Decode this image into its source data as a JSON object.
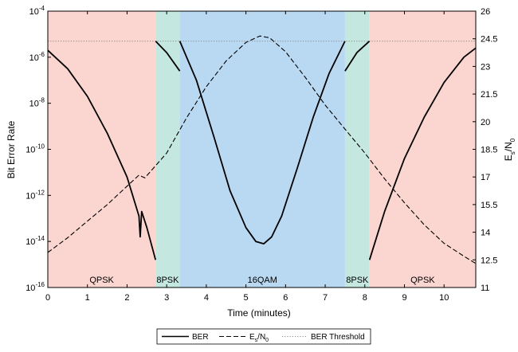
{
  "chart_data": {
    "type": "line",
    "xlabel": "Time (minutes)",
    "ylabel_left": "Bit Error Rate",
    "ylabel_right": {
      "main": "E",
      "sub1": "s",
      "slash": "/N",
      "sub2": "0"
    },
    "xlim": [
      0,
      10.8
    ],
    "x_ticks": [
      0,
      1,
      2,
      3,
      4,
      5,
      6,
      7,
      8,
      9,
      10
    ],
    "x_tick_labels": [
      "0",
      "1",
      "2",
      "3",
      "4",
      "5",
      "6",
      "7",
      "8",
      "9",
      "10"
    ],
    "y_left_scale": "log",
    "y_left_exponent_range": [
      -16,
      -4
    ],
    "y_left_tick_exponents": [
      -16,
      -14,
      -12,
      -10,
      -8,
      -6,
      -4
    ],
    "y_left_tick_base": "10",
    "y_left_tick_exps": [
      "-16",
      "-14",
      "-12",
      "-10",
      "-8",
      "-6",
      "-4"
    ],
    "y_right_lim": [
      11,
      26
    ],
    "y_right_ticks": [
      11,
      12.5,
      14,
      15.5,
      17,
      18.5,
      20,
      21.5,
      23,
      24.5,
      26
    ],
    "y_right_tick_labels": [
      "11",
      "12.5",
      "14",
      "15.5",
      "17",
      "18.5",
      "20",
      "21.5",
      "23",
      "24.5",
      "26"
    ],
    "regions": [
      {
        "label": "QPSK",
        "x0": 0,
        "x1": 2.72,
        "color": "#fbd5d0"
      },
      {
        "label": "8PSK",
        "x0": 2.72,
        "x1": 3.33,
        "color": "#c4e8df"
      },
      {
        "label": "16QAM",
        "x0": 3.33,
        "x1": 7.5,
        "color": "#b9d8f2"
      },
      {
        "label": "8PSK",
        "x0": 7.5,
        "x1": 8.12,
        "color": "#c4e8df"
      },
      {
        "label": "QPSK",
        "x0": 8.12,
        "x1": 10.8,
        "color": "#fbd5d0"
      }
    ],
    "series": [
      {
        "name": "BER",
        "axis": "left",
        "style": "solid",
        "segments": [
          [
            [
              0,
              -5.7
            ],
            [
              0.5,
              -6.5
            ],
            [
              1.0,
              -7.7
            ],
            [
              1.5,
              -9.3
            ],
            [
              2.0,
              -11.2
            ],
            [
              2.3,
              -12.9
            ],
            [
              2.33,
              -13.8
            ],
            [
              2.37,
              -12.7
            ],
            [
              2.5,
              -13.4
            ],
            [
              2.72,
              -14.8
            ]
          ],
          [
            [
              2.72,
              -5.3
            ],
            [
              3.0,
              -5.8
            ],
            [
              3.33,
              -6.6
            ]
          ],
          [
            [
              3.33,
              -5.3
            ],
            [
              3.75,
              -7.0
            ],
            [
              4.2,
              -9.5
            ],
            [
              4.6,
              -11.8
            ],
            [
              5.0,
              -13.4
            ],
            [
              5.25,
              -14.0
            ],
            [
              5.45,
              -14.1
            ],
            [
              5.65,
              -13.8
            ],
            [
              5.9,
              -12.9
            ],
            [
              6.3,
              -10.8
            ],
            [
              6.7,
              -8.6
            ],
            [
              7.1,
              -6.7
            ],
            [
              7.5,
              -5.3
            ]
          ],
          [
            [
              7.5,
              -6.6
            ],
            [
              7.8,
              -5.8
            ],
            [
              8.12,
              -5.3
            ]
          ],
          [
            [
              8.12,
              -14.8
            ],
            [
              8.5,
              -12.7
            ],
            [
              9.0,
              -10.4
            ],
            [
              9.5,
              -8.6
            ],
            [
              10.0,
              -7.1
            ],
            [
              10.5,
              -6.0
            ],
            [
              10.8,
              -5.6
            ]
          ]
        ]
      },
      {
        "name": "Es/N0",
        "axis": "right",
        "style": "dashed",
        "points": [
          [
            0,
            12.9
          ],
          [
            0.5,
            13.7
          ],
          [
            1.0,
            14.6
          ],
          [
            1.5,
            15.5
          ],
          [
            2.0,
            16.5
          ],
          [
            2.3,
            17.1
          ],
          [
            2.45,
            16.95
          ],
          [
            3.0,
            18.3
          ],
          [
            3.5,
            20.2
          ],
          [
            4.0,
            21.9
          ],
          [
            4.5,
            23.3
          ],
          [
            5.0,
            24.3
          ],
          [
            5.35,
            24.65
          ],
          [
            5.6,
            24.55
          ],
          [
            6.0,
            23.8
          ],
          [
            6.5,
            22.4
          ],
          [
            7.0,
            20.9
          ],
          [
            7.5,
            19.6
          ],
          [
            8.0,
            18.3
          ],
          [
            8.5,
            16.9
          ],
          [
            9.0,
            15.6
          ],
          [
            9.5,
            14.4
          ],
          [
            10.0,
            13.4
          ],
          [
            10.5,
            12.7
          ],
          [
            10.8,
            12.3
          ]
        ]
      },
      {
        "name": "BER Threshold",
        "axis": "left",
        "style": "dotted",
        "points": [
          [
            0,
            -5.3
          ],
          [
            10.8,
            -5.3
          ]
        ]
      }
    ],
    "legend": {
      "placement": "bottom-center",
      "items": [
        {
          "label": "BER",
          "style": "solid"
        },
        {
          "label": {
            "main": "E",
            "sub1": "s",
            "slash": "/N",
            "sub2": "0"
          },
          "style": "dashed"
        },
        {
          "label": "BER Threshold",
          "style": "dotted"
        }
      ]
    }
  }
}
